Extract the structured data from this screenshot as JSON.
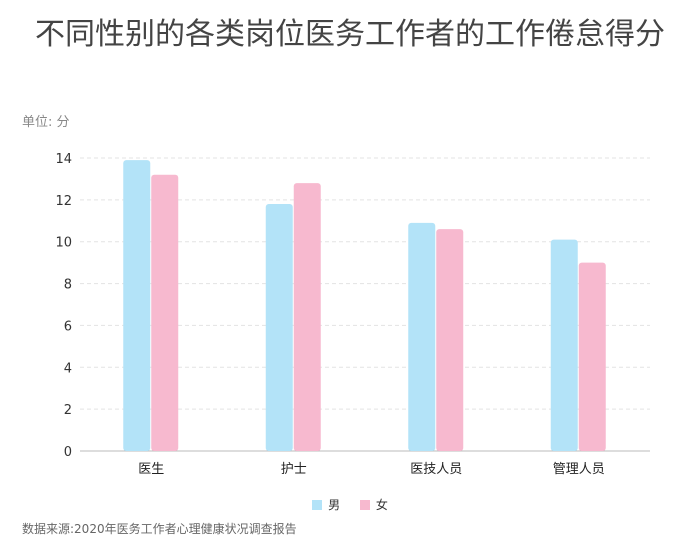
{
  "title": "不同性别的各类岗位医务工作者的工作倦怠得分",
  "unit": "单位: 分",
  "source": "数据来源:2020年医务工作者心理健康状况调查报告",
  "chart_data": {
    "type": "bar",
    "title": "不同性别的各类岗位医务工作者的工作倦怠得分",
    "ylabel": "单位: 分",
    "ylim": [
      0,
      14
    ],
    "yticks": [
      0,
      2,
      4,
      6,
      8,
      10,
      12,
      14
    ],
    "grid": true,
    "legend": "bottom",
    "categories": [
      "医生",
      "护士",
      "医技人员",
      "管理人员"
    ],
    "series": [
      {
        "name": "男",
        "color": "#b3e3f8",
        "values": [
          13.9,
          11.8,
          10.9,
          10.1
        ]
      },
      {
        "name": "女",
        "color": "#f7b9cf",
        "values": [
          13.2,
          12.8,
          10.6,
          9.0
        ]
      }
    ]
  }
}
